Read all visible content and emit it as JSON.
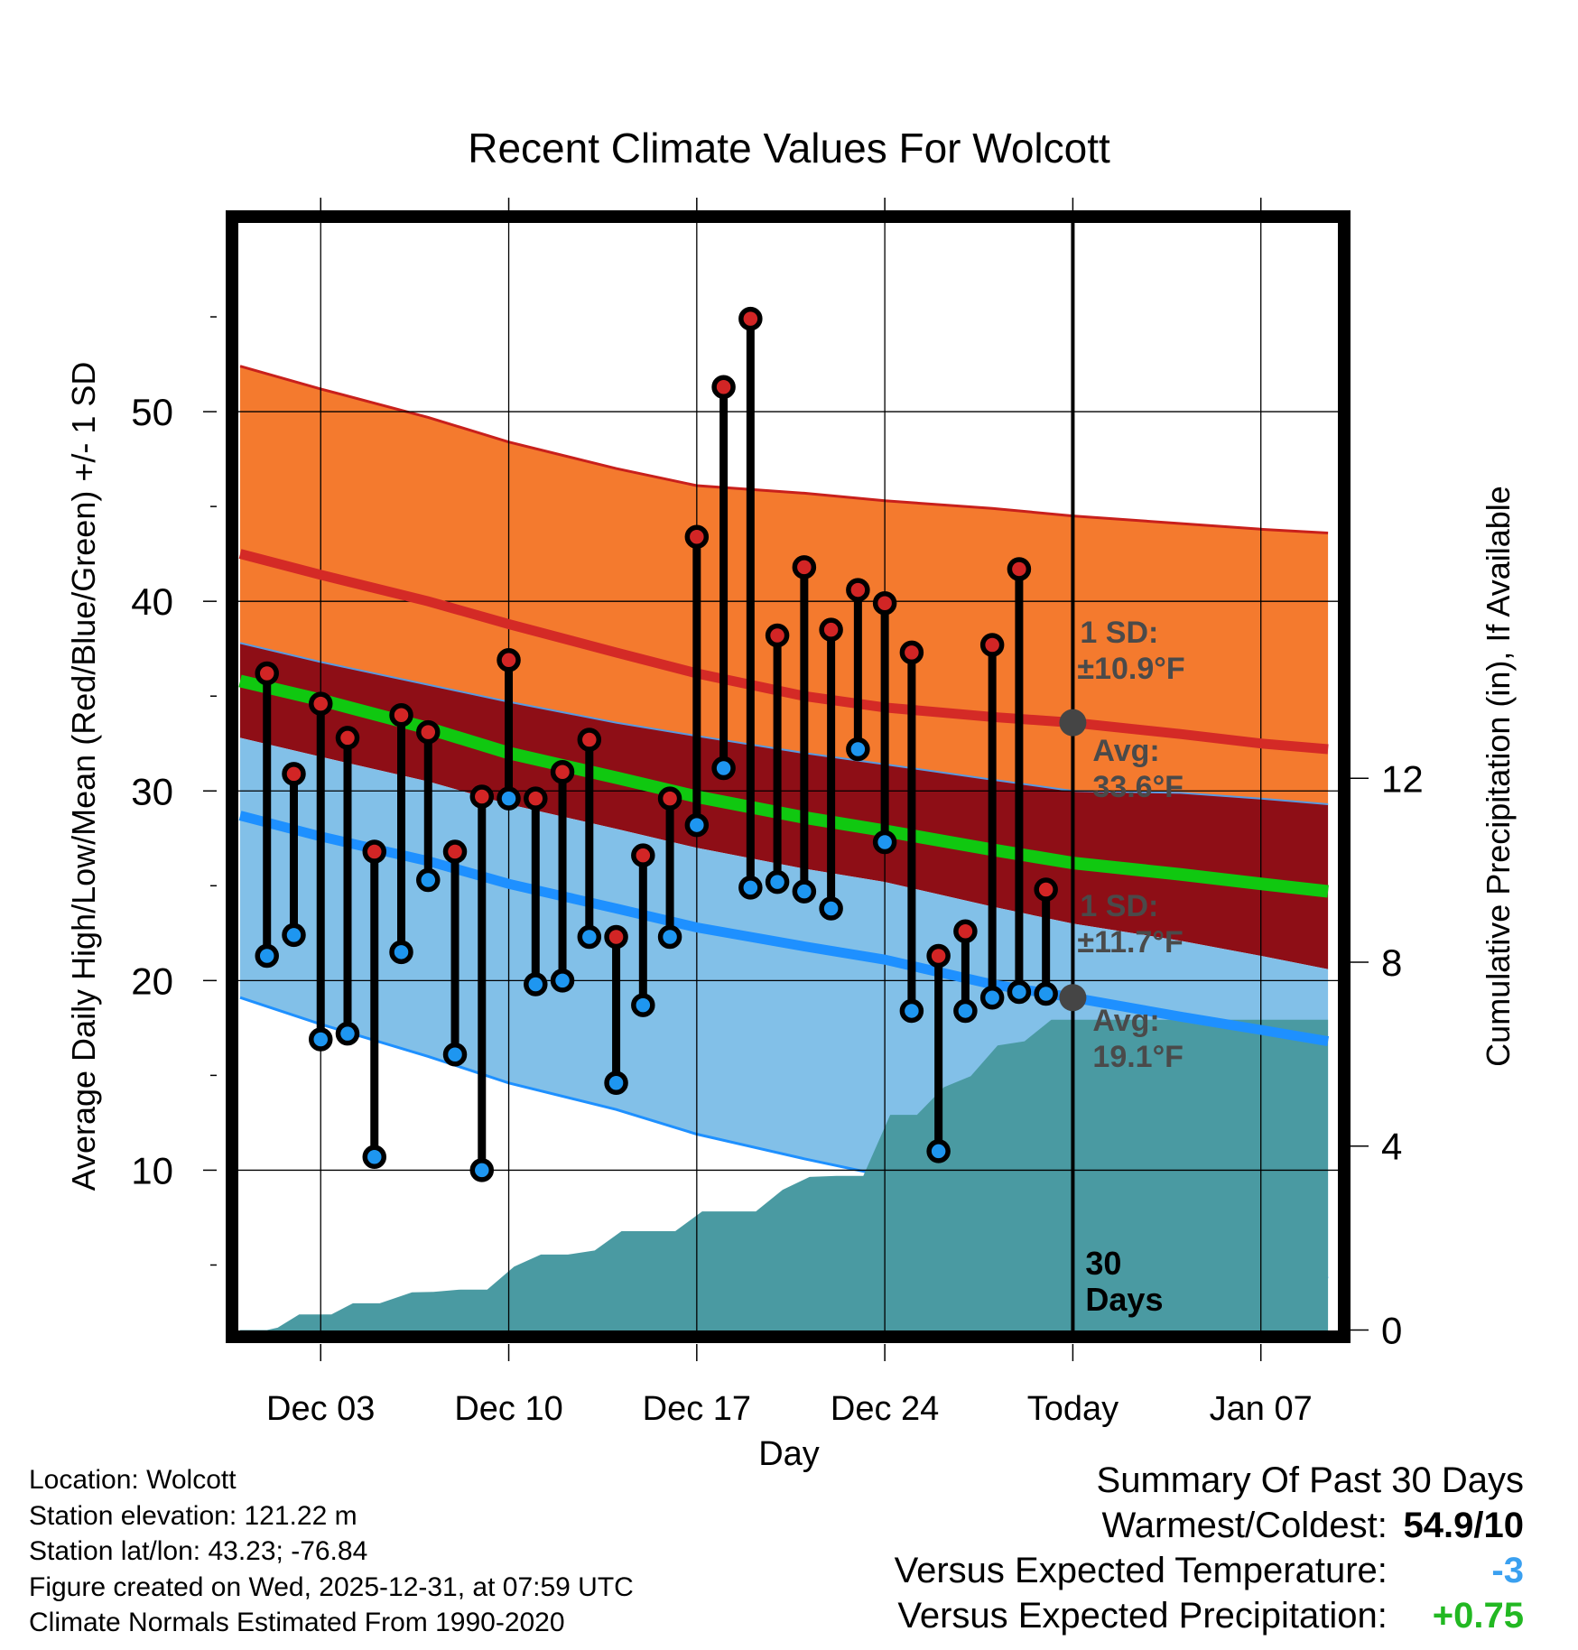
{
  "chart_data": {
    "type": "line",
    "title": "Recent Climate Values For Wolcott",
    "xlabel": "Day",
    "ylabel": "Average Daily High/Low/Mean (Red/Blue/Green) +/- 1 SD",
    "y2label": "Cumulative Precipitation (in), If Available",
    "x_tick_labels": [
      "Dec 03",
      "Dec 10",
      "Dec 17",
      "Dec 24",
      "Today",
      "Jan 07"
    ],
    "x_tick_days": [
      3,
      10,
      17,
      24,
      31,
      38
    ],
    "xlim": [
      -0.1,
      40.9
    ],
    "ylim": [
      1.5,
      60
    ],
    "y_ticks": [
      10,
      20,
      30,
      40,
      50
    ],
    "y2lim": [
      -0.03,
      24.1
    ],
    "y2_ticks": [
      0,
      4,
      8,
      12
    ],
    "normals": {
      "days": [
        0,
        3,
        7,
        10,
        14,
        17,
        21,
        24,
        28,
        31,
        35,
        38,
        40.5
      ],
      "high_mean": [
        42.5,
        41.4,
        40,
        38.8,
        37.3,
        36.2,
        35.0,
        34.4,
        33.9,
        33.6,
        33.0,
        32.5,
        32.2
      ],
      "high_upper": [
        52.4,
        51.2,
        49.7,
        48.4,
        47.0,
        46.1,
        45.7,
        45.3,
        44.9,
        44.5,
        44.1,
        43.8,
        43.6
      ],
      "mean": [
        35.8,
        34.8,
        33.3,
        32.0,
        30.7,
        29.7,
        28.6,
        27.9,
        26.9,
        26.2,
        25.6,
        25.1,
        24.7
      ],
      "low_mean": [
        28.7,
        27.6,
        26.3,
        25.1,
        23.8,
        22.8,
        21.8,
        21.1,
        19.8,
        19.1,
        18.1,
        17.4,
        16.8
      ],
      "mid_sd_boundary": [
        37.8,
        36.8,
        35.6,
        34.7,
        33.6,
        32.9,
        32.0,
        31.4,
        30.6,
        30.0,
        29.9,
        29.6,
        29.3
      ],
      "low_upper": [
        32.8,
        31.8,
        30.5,
        29.3,
        28.0,
        27.0,
        25.9,
        25.2,
        23.9,
        23.0,
        22.1,
        21.3,
        20.6
      ],
      "low_lower": [
        19.1,
        17.7,
        16.0,
        14.6,
        13.2,
        11.9,
        10.6,
        9.7,
        8.4,
        7.4,
        6.0,
        5.1,
        4.3
      ]
    },
    "annotations": {
      "high_sd_label_1": "1 SD:",
      "high_sd_label_2": "±10.9°F",
      "high_avg_label_1": "Avg:",
      "high_avg_label_2": "33.6°F",
      "low_sd_label_1": "1 SD:",
      "low_sd_label_2": "±11.7°F",
      "low_avg_label_1": "Avg:",
      "low_avg_label_2": "19.1°F",
      "days_label_1": "30",
      "days_label_2": "Days",
      "high_avg_value": 33.6,
      "low_avg_value": 19.1
    },
    "daily": {
      "days": [
        1,
        2,
        3,
        4,
        5,
        6,
        7,
        8,
        9,
        10,
        11,
        12,
        13,
        14,
        15,
        16,
        17,
        18,
        19,
        20,
        21,
        22,
        23,
        24,
        25,
        26,
        27,
        28,
        29,
        30
      ],
      "highs": [
        36.2,
        30.9,
        34.6,
        32.8,
        26.8,
        34.0,
        33.1,
        26.8,
        29.7,
        36.9,
        29.6,
        31.0,
        32.7,
        22.3,
        26.6,
        29.6,
        43.4,
        51.3,
        54.9,
        38.2,
        41.8,
        38.5,
        40.6,
        39.9,
        37.3,
        21.3,
        22.6,
        37.7,
        41.7,
        24.8
      ],
      "lows": [
        21.3,
        22.4,
        16.9,
        17.2,
        10.7,
        21.5,
        25.3,
        16.1,
        10.0,
        29.6,
        19.8,
        20.0,
        22.3,
        14.6,
        18.7,
        22.3,
        28.2,
        31.2,
        24.9,
        25.2,
        24.7,
        23.8,
        32.2,
        27.3,
        18.4,
        11.0,
        18.4,
        19.1,
        19.4,
        19.3
      ]
    },
    "precip": {
      "days": [
        0,
        1,
        1.4,
        2.2,
        3.4,
        4.2,
        5.2,
        6.4,
        7.2,
        8.2,
        9.2,
        10.2,
        11.2,
        12.2,
        13.2,
        14.2,
        15.2,
        16.2,
        17.2,
        18.2,
        19.2,
        20.2,
        21.2,
        22.2,
        23.2,
        24.2,
        25.2,
        26.2,
        27.2,
        28.2,
        29.2,
        30.2,
        40.5
      ],
      "cumulative": [
        0,
        0,
        0.05,
        0.34,
        0.34,
        0.58,
        0.58,
        0.82,
        0.83,
        0.88,
        0.88,
        1.38,
        1.64,
        1.64,
        1.73,
        2.15,
        2.15,
        2.15,
        2.58,
        2.58,
        2.58,
        3.05,
        3.33,
        3.35,
        3.35,
        4.68,
        4.68,
        5.28,
        5.52,
        6.19,
        6.28,
        6.75,
        6.75
      ]
    }
  },
  "footer": {
    "location": "Location: Wolcott",
    "elevation": "Station elevation: 121.22 m",
    "latlon": "Station lat/lon: 43.23; -76.84",
    "created": "Figure created on Wed, 2025-12-31, at 07:59 UTC",
    "normals": "Climate Normals Estimated From 1990-2020"
  },
  "summary": {
    "title": "Summary Of Past 30 Days",
    "warmest_coldest_label": "Warmest/Coldest:",
    "warmest_coldest_value": "54.9/10",
    "temp_label": "Versus Expected Temperature:",
    "temp_value": "-3",
    "precip_label": "Versus Expected Precipitation:",
    "precip_value": "+0.75"
  },
  "colors": {
    "high_sd_band": "#f47a2e",
    "high_mean_line": "#d42a26",
    "overlap_band": "#8e0e16",
    "mean_line": "#10c810",
    "low_sd_band": "#82c0e8",
    "low_mean_line": "#1e90ff",
    "precip_fill": "#4a9aa2",
    "high_marker": "#d22525",
    "low_marker": "#1e96f0",
    "avg_marker": "#454545",
    "annotation_text": "#4a4a4a",
    "temp_value": "#3aa0f0",
    "precip_value": "#22b822"
  }
}
